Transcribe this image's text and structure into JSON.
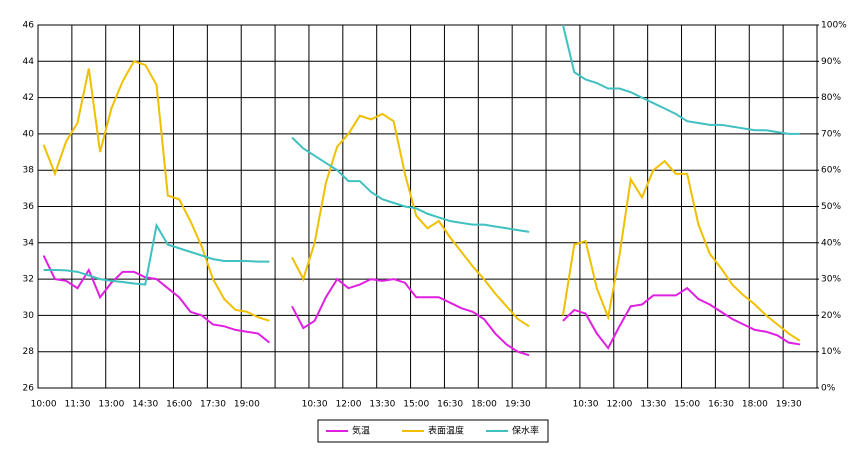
{
  "chart_data": {
    "type": "line",
    "categories": [
      "10:00",
      null,
      null,
      "11:30",
      null,
      null,
      "13:00",
      null,
      null,
      "14:30",
      null,
      null,
      "16:00",
      null,
      null,
      "17:30",
      null,
      null,
      "19:00",
      null,
      null,
      null,
      null,
      null,
      "10:30",
      null,
      null,
      "12:00",
      null,
      null,
      "13:30",
      null,
      null,
      "15:00",
      null,
      null,
      "16:30",
      null,
      null,
      "18:00",
      null,
      null,
      "19:30",
      null,
      null,
      null,
      null,
      null,
      "10:30",
      null,
      null,
      "12:00",
      null,
      null,
      "13:30",
      null,
      null,
      "15:00",
      null,
      null,
      "16:30",
      null,
      null,
      "18:00",
      null,
      null,
      "19:30",
      null,
      null
    ],
    "series": [
      {
        "name": "気温",
        "color": "#e020e0",
        "values": [
          33.3,
          32.0,
          31.9,
          31.5,
          32.5,
          31.0,
          31.8,
          32.4,
          32.4,
          32.1,
          32.0,
          31.5,
          31.0,
          30.2,
          30.0,
          29.5,
          29.4,
          29.2,
          29.1,
          29.0,
          28.5,
          null,
          30.5,
          29.3,
          29.7,
          31.0,
          32.0,
          31.5,
          31.7,
          32.0,
          31.9,
          32.0,
          31.8,
          31.0,
          31.0,
          31.0,
          30.7,
          30.4,
          30.2,
          29.8,
          29.0,
          28.4,
          28.0,
          27.8,
          null,
          null,
          29.7,
          30.3,
          30.1,
          29.0,
          28.2,
          29.4,
          30.5,
          30.6,
          31.1,
          31.1,
          31.1,
          31.5,
          30.9,
          30.6,
          30.2,
          29.8,
          29.5,
          29.2,
          29.1,
          28.9,
          28.5,
          28.4,
          null
        ]
      },
      {
        "name": "表面温度",
        "color": "#f0c000",
        "values": [
          39.4,
          37.8,
          39.6,
          40.6,
          43.6,
          39.0,
          41.4,
          42.9,
          44.0,
          43.8,
          42.7,
          36.6,
          36.4,
          35.2,
          33.8,
          32.0,
          30.9,
          30.3,
          30.2,
          29.9,
          29.7,
          null,
          33.2,
          32.0,
          34.0,
          37.3,
          39.3,
          40.0,
          41.0,
          40.8,
          41.1,
          40.7,
          37.8,
          35.5,
          34.8,
          35.2,
          34.3,
          33.5,
          32.7,
          32.0,
          31.2,
          30.5,
          29.8,
          29.4,
          null,
          null,
          30.0,
          33.9,
          34.1,
          31.5,
          29.9,
          33.3,
          37.5,
          36.5,
          38.0,
          38.5,
          37.8,
          37.8,
          35.0,
          33.4,
          32.6,
          31.7,
          31.1,
          30.6,
          30.0,
          29.5,
          29.0,
          28.6,
          null
        ]
      },
      {
        "name": "保水率",
        "color": "#40c0c0",
        "axis": "y2",
        "values": [
          32.5,
          32.5,
          32.4,
          32,
          31,
          30,
          29.5,
          29.2,
          28.8,
          28.5,
          44.8,
          39.5,
          38.5,
          37.5,
          36.5,
          35.5,
          35,
          35,
          35,
          34.8,
          34.8,
          null,
          69,
          66,
          64,
          62,
          60,
          57,
          57,
          54,
          52,
          51,
          50,
          49.5,
          48,
          47,
          46,
          45.5,
          45,
          45,
          44.5,
          44,
          43.5,
          43,
          null,
          null,
          100,
          87,
          85,
          84,
          82.5,
          82.5,
          81.5,
          80,
          78.5,
          77,
          75.5,
          73.5,
          73,
          72.5,
          72.5,
          72,
          71.5,
          71,
          71,
          70.5,
          70,
          70,
          null
        ]
      }
    ],
    "ylim": [
      26,
      46
    ],
    "yticks": [
      26,
      28,
      30,
      32,
      34,
      36,
      38,
      40,
      42,
      44,
      46
    ],
    "y2lim": [
      0,
      100
    ],
    "y2ticks": [
      {
        "value": 0,
        "label": "0%"
      },
      {
        "value": 10,
        "label": "10%"
      },
      {
        "value": 20,
        "label": "20%"
      },
      {
        "value": 30,
        "label": "30%"
      },
      {
        "value": 40,
        "label": "40%"
      },
      {
        "value": 50,
        "label": "50%"
      },
      {
        "value": 60,
        "label": "60%"
      },
      {
        "value": 70,
        "label": "70%"
      },
      {
        "value": 80,
        "label": "80%"
      },
      {
        "value": 90,
        "label": "90%"
      },
      {
        "value": 100,
        "label": "100%"
      }
    ],
    "grid": true,
    "legend": "bottom"
  }
}
